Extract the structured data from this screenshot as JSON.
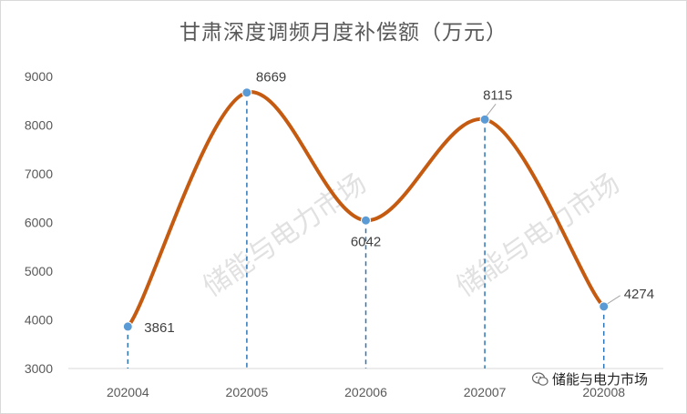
{
  "chart_data": {
    "type": "line",
    "title": "甘肃深度调频月度补偿额（万元）",
    "categories": [
      "202004",
      "202005",
      "202006",
      "202007",
      "202008"
    ],
    "values": [
      3861,
      8669,
      6042,
      8115,
      4274
    ],
    "ylim": [
      3000,
      9000
    ],
    "yticks": [
      "3000",
      "4000",
      "5000",
      "6000",
      "7000",
      "8000",
      "9000"
    ],
    "line_color": "#c55a11",
    "marker_color": "#5b9bd5",
    "drop_line_color": "#2e75b6",
    "smooth": true,
    "grid": false,
    "legend": "none"
  },
  "watermark": {
    "text": "储能与电力市场"
  },
  "brand": {
    "text": "储能与电力市场",
    "icon": "wechat-icon"
  }
}
